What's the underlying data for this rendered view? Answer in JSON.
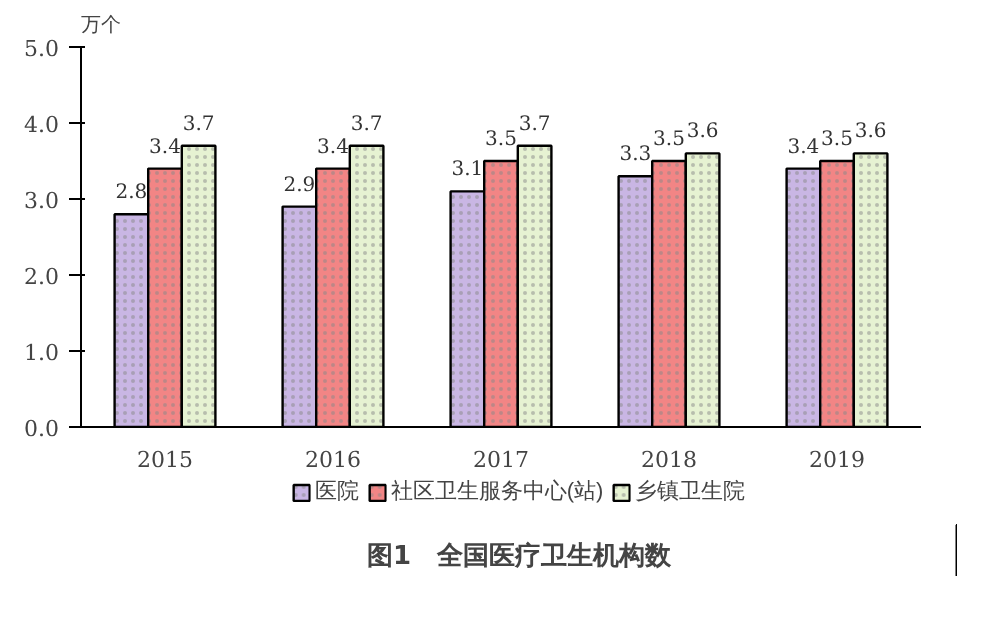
{
  "chart_data": {
    "type": "bar",
    "title": "图1　全国医疗卫生机构数",
    "ylabel": "万个",
    "categories": [
      "2015",
      "2016",
      "2017",
      "2018",
      "2019"
    ],
    "series": [
      {
        "name": "医院",
        "color": "#c9b6e4",
        "values": [
          2.8,
          2.9,
          3.1,
          3.3,
          3.4
        ]
      },
      {
        "name": "社区卫生服务中心(站)",
        "color": "#f28585",
        "values": [
          3.4,
          3.4,
          3.5,
          3.5,
          3.5
        ]
      },
      {
        "name": "乡镇卫生院",
        "color": "#e6f2d2",
        "values": [
          3.7,
          3.7,
          3.7,
          3.6,
          3.6
        ]
      }
    ],
    "ylim": [
      0,
      5
    ],
    "yticks": [
      {
        "value": 0,
        "label": "0.0"
      },
      {
        "value": 1,
        "label": "1.0"
      },
      {
        "value": 2,
        "label": "2.0"
      },
      {
        "value": 3,
        "label": "3.0"
      },
      {
        "value": 4,
        "label": "4.0"
      },
      {
        "value": 5,
        "label": "5.0"
      }
    ],
    "data_labels": true,
    "legend": "bottom",
    "grid": false
  }
}
